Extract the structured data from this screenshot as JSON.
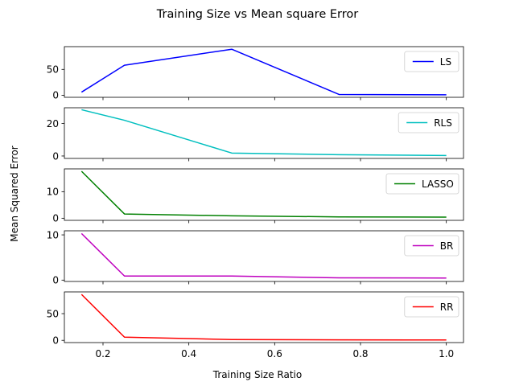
{
  "figure": {
    "title": "Training Size vs Mean square Error",
    "ylabel": "Mean Squared Error",
    "xlabel": "Training Size Ratio"
  },
  "chart_data": {
    "type": "line",
    "shared_x": true,
    "x": [
      0.15,
      0.25,
      0.5,
      0.75,
      1.0
    ],
    "xlim": [
      0.11,
      1.04
    ],
    "xticks": [
      0.2,
      0.4,
      0.6,
      0.8,
      1.0
    ],
    "xtick_labels": [
      "0.2",
      "0.4",
      "0.6",
      "0.8",
      "1.0"
    ],
    "grid": false,
    "legend_position": "upper right",
    "subplots": [
      {
        "name": "LS",
        "color": "#0000ff",
        "values": [
          6,
          58,
          89,
          1.5,
          0.8
        ],
        "ylim": [
          -4,
          94
        ],
        "yticks": [
          0,
          50
        ],
        "ytick_labels": [
          "0",
          "50"
        ]
      },
      {
        "name": "RLS",
        "color": "#00bfbf",
        "values": [
          28.5,
          22,
          1.8,
          0.8,
          0.3
        ],
        "ylim": [
          -1.5,
          29.7
        ],
        "yticks": [
          0,
          20
        ],
        "ytick_labels": [
          "0",
          "20"
        ]
      },
      {
        "name": "LASSO",
        "color": "#008000",
        "values": [
          17.7,
          1.6,
          0.9,
          0.5,
          0.4
        ],
        "ylim": [
          -0.8,
          18.6
        ],
        "yticks": [
          0,
          10
        ],
        "ytick_labels": [
          "0",
          "10"
        ]
      },
      {
        "name": "BR",
        "color": "#bf00bf",
        "values": [
          10.3,
          0.9,
          0.9,
          0.5,
          0.45
        ],
        "ylim": [
          -0.3,
          10.9
        ],
        "yticks": [
          0,
          10
        ],
        "ytick_labels": [
          "0",
          "10"
        ]
      },
      {
        "name": "RR",
        "color": "#ff0000",
        "values": [
          86,
          6,
          1.5,
          0.9,
          0.7
        ],
        "ylim": [
          -4.2,
          90.7
        ],
        "yticks": [
          0,
          50
        ],
        "ytick_labels": [
          "0",
          "50"
        ]
      }
    ]
  }
}
